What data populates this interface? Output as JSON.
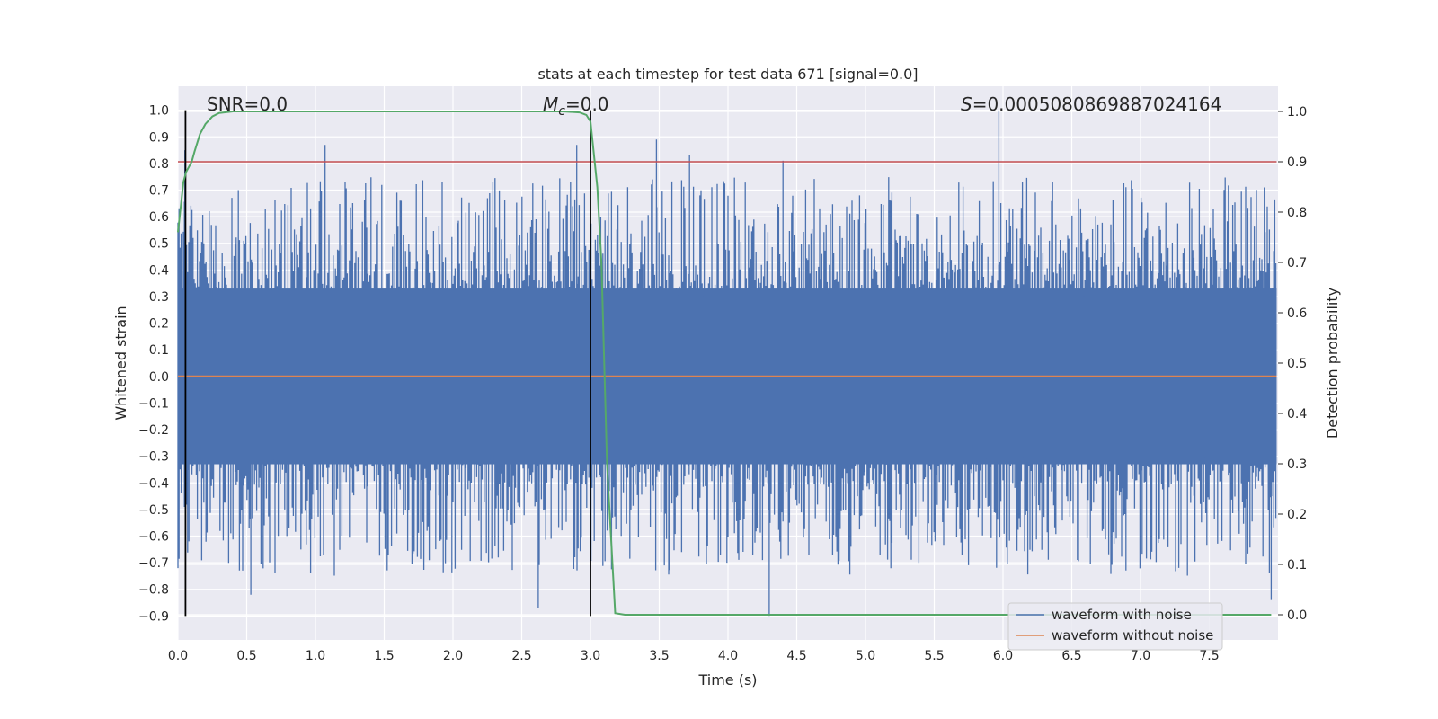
{
  "chart_data": {
    "type": "line",
    "title": "stats at each timestep for test data 671 [signal=0.0]",
    "xlabel": "Time (s)",
    "ylabel": "Whitened strain",
    "y2label": "Detection probability",
    "xlim": [
      0.0,
      8.0
    ],
    "ylim": [
      -0.99,
      1.09
    ],
    "y2lim": [
      -0.05,
      1.05
    ],
    "xticks": [
      "0.0",
      "0.5",
      "1.0",
      "1.5",
      "2.0",
      "2.5",
      "3.0",
      "3.5",
      "4.0",
      "4.5",
      "5.0",
      "5.5",
      "6.0",
      "6.5",
      "7.0",
      "7.5"
    ],
    "yticks": [
      "1.0",
      "0.9",
      "0.8",
      "0.7",
      "0.6",
      "0.5",
      "0.4",
      "0.3",
      "0.2",
      "0.1",
      "0.0",
      "−0.1",
      "−0.2",
      "−0.3",
      "−0.4",
      "−0.5",
      "−0.6",
      "−0.7",
      "−0.8",
      "−0.9"
    ],
    "y2ticks": [
      "1.0",
      "0.9",
      "0.8",
      "0.7",
      "0.6",
      "0.5",
      "0.4",
      "0.3",
      "0.2",
      "0.1",
      "0.0"
    ],
    "grid": true,
    "legend_position": "lower right",
    "annotations": {
      "snr": "SNR=0.0",
      "mc_symbol": "M",
      "mc_sub": "c",
      "mc_value": "=0.0",
      "s_symbol": "S",
      "s_value": "=0.0005080869887024164"
    },
    "series": [
      {
        "name": "waveform with noise",
        "color": "#4c72b0",
        "style": "dense noise trace",
        "band_low": -0.33,
        "band_high": 0.33,
        "notable_peaks": [
          {
            "x": 0.05,
            "y": 0.85
          },
          {
            "x": 0.08,
            "y": -0.62
          },
          {
            "x": 0.53,
            "y": -0.82
          },
          {
            "x": 1.07,
            "y": 0.87
          },
          {
            "x": 2.9,
            "y": 0.87
          },
          {
            "x": 2.62,
            "y": -0.87
          },
          {
            "x": 3.48,
            "y": 0.89
          },
          {
            "x": 3.72,
            "y": 0.83
          },
          {
            "x": 4.3,
            "y": -0.9
          },
          {
            "x": 4.4,
            "y": 0.81
          },
          {
            "x": 5.97,
            "y": 1.0
          },
          {
            "x": 7.95,
            "y": -0.84
          },
          {
            "x": 7.9,
            "y": 0.71
          }
        ]
      },
      {
        "name": "waveform without noise",
        "color": "#dd8452",
        "x": [
          0.0,
          7.99
        ],
        "y": [
          0.0,
          0.0
        ]
      },
      {
        "name": "detection probability",
        "color": "#55a868",
        "axis": "right",
        "x": [
          0.0,
          0.04,
          0.06,
          0.1,
          0.12,
          0.16,
          0.2,
          0.25,
          0.3,
          0.4,
          0.5,
          1.0,
          2.0,
          2.8,
          2.92,
          2.97,
          3.0,
          3.05,
          3.08,
          3.12,
          3.16,
          3.18,
          3.25,
          3.4,
          7.95
        ],
        "y": [
          0.76,
          0.86,
          0.88,
          0.9,
          0.92,
          0.955,
          0.975,
          0.99,
          0.997,
          1.0,
          1.0,
          1.0,
          1.0,
          1.0,
          0.998,
          0.993,
          0.98,
          0.85,
          0.7,
          0.3,
          0.1,
          0.003,
          0.0,
          0.0,
          0.0
        ]
      },
      {
        "name": "threshold",
        "color": "#c44e52",
        "axis": "right",
        "x": [
          0.0,
          7.99
        ],
        "y": [
          0.9,
          0.9
        ]
      }
    ],
    "vlines": [
      {
        "x": 0.055,
        "y_from": -0.9,
        "y_to": 1.0,
        "color": "#000000"
      },
      {
        "x": 3.0,
        "y_from": -0.9,
        "y_to": 1.0,
        "color": "#000000"
      }
    ]
  }
}
